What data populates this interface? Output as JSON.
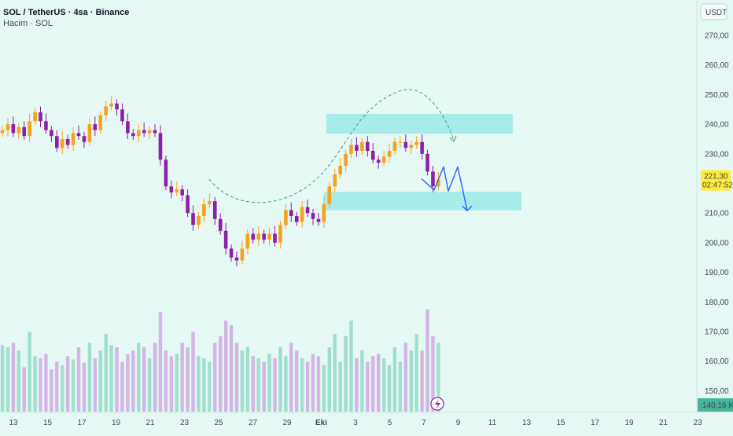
{
  "header": {
    "title": "SOL / TetherUS · 4sa · Binance",
    "volume_label": "Hacim · SOL"
  },
  "currency": "USDT",
  "current_price": {
    "value": "221,30",
    "countdown": "02:47:52"
  },
  "volume_readout": "140,16 K",
  "colors": {
    "background": "#e6f8f4",
    "up": "#f7a21b",
    "down": "#8e1fa8",
    "volume_up": "#9fdfcf",
    "volume_down": "#d4b6e6",
    "zone": "#a8ecea",
    "path": "#2962ff",
    "price_badge": "#ffeb3b"
  },
  "chart_data": {
    "type": "candlestick",
    "y_axis": {
      "ticks": [
        "270,00",
        "260,00",
        "250,00",
        "240,00",
        "230,00",
        "210,00",
        "200,00",
        "190,00",
        "180,00",
        "170,00",
        "160,00",
        "150,00"
      ],
      "tick_values": [
        270,
        260,
        250,
        240,
        230,
        210,
        200,
        190,
        180,
        170,
        160,
        150
      ],
      "range": [
        145,
        277
      ]
    },
    "x_axis": {
      "ticks": [
        "13",
        "15",
        "17",
        "19",
        "21",
        "23",
        "25",
        "27",
        "29",
        "Eki",
        "3",
        "5",
        "7",
        "9",
        "11",
        "13",
        "15",
        "17",
        "19",
        "21",
        "23"
      ]
    },
    "price_path": [
      [
        0,
        238
      ],
      [
        1,
        240
      ],
      [
        2,
        237
      ],
      [
        3,
        239
      ],
      [
        4,
        236
      ],
      [
        5,
        241
      ],
      [
        6,
        244
      ],
      [
        7,
        241
      ],
      [
        8,
        238
      ],
      [
        9,
        236
      ],
      [
        10,
        232
      ],
      [
        11,
        235
      ],
      [
        12,
        233
      ],
      [
        13,
        237
      ],
      [
        14,
        236
      ],
      [
        15,
        234
      ],
      [
        16,
        240
      ],
      [
        17,
        238
      ],
      [
        18,
        243
      ],
      [
        19,
        246
      ],
      [
        20,
        247
      ],
      [
        21,
        245
      ],
      [
        22,
        241
      ],
      [
        23,
        237
      ],
      [
        24,
        236
      ],
      [
        25,
        238
      ],
      [
        26,
        237
      ],
      [
        27,
        238
      ],
      [
        28,
        237
      ],
      [
        29,
        228
      ],
      [
        30,
        219
      ],
      [
        31,
        217
      ],
      [
        32,
        218
      ],
      [
        33,
        216
      ],
      [
        34,
        210
      ],
      [
        35,
        206
      ],
      [
        36,
        209
      ],
      [
        37,
        213
      ],
      [
        38,
        214
      ],
      [
        39,
        208
      ],
      [
        40,
        204
      ],
      [
        41,
        198
      ],
      [
        42,
        195
      ],
      [
        43,
        194
      ],
      [
        44,
        198
      ],
      [
        45,
        203
      ],
      [
        46,
        201
      ],
      [
        47,
        203
      ],
      [
        48,
        201
      ],
      [
        49,
        203
      ],
      [
        50,
        200
      ],
      [
        51,
        206
      ],
      [
        52,
        211
      ],
      [
        53,
        209
      ],
      [
        54,
        207
      ],
      [
        55,
        212
      ],
      [
        56,
        210
      ],
      [
        57,
        208
      ],
      [
        58,
        207
      ],
      [
        59,
        213
      ],
      [
        60,
        219
      ],
      [
        61,
        223
      ],
      [
        62,
        226
      ],
      [
        63,
        230
      ],
      [
        64,
        233
      ],
      [
        65,
        231
      ],
      [
        66,
        234
      ],
      [
        67,
        231
      ],
      [
        68,
        228
      ],
      [
        69,
        227
      ],
      [
        70,
        229
      ],
      [
        71,
        231
      ],
      [
        72,
        234
      ],
      [
        73,
        234
      ],
      [
        74,
        232
      ],
      [
        75,
        233
      ],
      [
        76,
        234
      ],
      [
        77,
        230
      ],
      [
        78,
        224
      ],
      [
        79,
        219
      ],
      [
        80,
        221.3
      ]
    ],
    "volume": [
      60,
      58,
      62,
      55,
      40,
      72,
      50,
      48,
      52,
      38,
      45,
      42,
      50,
      47,
      58,
      44,
      62,
      48,
      55,
      70,
      60,
      58,
      45,
      52,
      55,
      62,
      58,
      48,
      62,
      90,
      55,
      50,
      52,
      62,
      58,
      72,
      50,
      48,
      45,
      62,
      68,
      82,
      78,
      62,
      55,
      58,
      50,
      48,
      45,
      52,
      48,
      58,
      50,
      62,
      55,
      48,
      45,
      52,
      50,
      42,
      58,
      70,
      45,
      68,
      82,
      48,
      55,
      45,
      50,
      52,
      48,
      42,
      58,
      45,
      62,
      55,
      70,
      55,
      92,
      68,
      62
    ],
    "resistance_zone": [
      236.8,
      243.5
    ],
    "support_zone": [
      210.9,
      217.2
    ],
    "projected_path": [
      221.6,
      217.8,
      225.6,
      217.4,
      225.6,
      210.8
    ]
  }
}
